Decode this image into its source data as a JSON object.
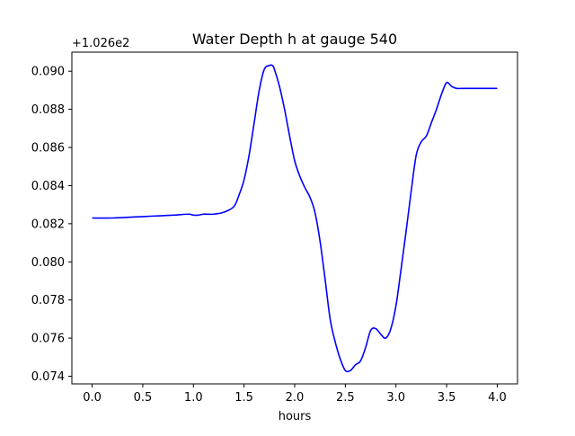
{
  "chart_data": {
    "type": "line",
    "title": "Water Depth h at gauge 540",
    "xlabel": "hours",
    "ylabel": "",
    "y_offset_label": "+1.026e2",
    "xlim": [
      -0.2,
      4.2
    ],
    "ylim": [
      0.0736,
      0.091
    ],
    "x_ticks": [
      0.0,
      0.5,
      1.0,
      1.5,
      2.0,
      2.5,
      3.0,
      3.5,
      4.0
    ],
    "x_tick_labels": [
      "0.0",
      "0.5",
      "1.0",
      "1.5",
      "2.0",
      "2.5",
      "3.0",
      "3.5",
      "4.0"
    ],
    "y_ticks": [
      0.074,
      0.076,
      0.078,
      0.08,
      0.082,
      0.084,
      0.086,
      0.088,
      0.09
    ],
    "y_tick_labels": [
      "0.074",
      "0.076",
      "0.078",
      "0.080",
      "0.082",
      "0.084",
      "0.086",
      "0.088",
      "0.090"
    ],
    "grid": false,
    "series": [
      {
        "color": "#0000ff",
        "x": [
          0.0,
          0.2,
          0.4,
          0.6,
          0.8,
          0.95,
          1.0,
          1.05,
          1.1,
          1.2,
          1.3,
          1.4,
          1.45,
          1.5,
          1.55,
          1.6,
          1.65,
          1.7,
          1.75,
          1.78,
          1.8,
          1.85,
          1.9,
          1.95,
          2.0,
          2.05,
          2.1,
          2.15,
          2.2,
          2.25,
          2.3,
          2.35,
          2.4,
          2.45,
          2.5,
          2.55,
          2.6,
          2.65,
          2.7,
          2.75,
          2.8,
          2.85,
          2.9,
          2.95,
          3.0,
          3.05,
          3.1,
          3.15,
          3.2,
          3.25,
          3.3,
          3.35,
          3.4,
          3.45,
          3.5,
          3.55,
          3.6,
          3.65,
          3.7,
          3.75,
          3.8,
          3.85,
          3.9,
          3.95,
          4.0
        ],
        "y": [
          0.0823,
          0.0823,
          0.08235,
          0.0824,
          0.08245,
          0.0825,
          0.08245,
          0.08245,
          0.0825,
          0.0825,
          0.0826,
          0.0829,
          0.0835,
          0.0843,
          0.0856,
          0.0873,
          0.089,
          0.0901,
          0.0903,
          0.0903,
          0.0901,
          0.0892,
          0.088,
          0.0866,
          0.0853,
          0.0845,
          0.0839,
          0.0834,
          0.0826,
          0.0811,
          0.0791,
          0.077,
          0.0758,
          0.0749,
          0.0743,
          0.0743,
          0.0746,
          0.0748,
          0.0755,
          0.0764,
          0.0765,
          0.0762,
          0.076,
          0.0765,
          0.0777,
          0.0796,
          0.0816,
          0.0837,
          0.0856,
          0.0863,
          0.0866,
          0.0873,
          0.088,
          0.0888,
          0.0894,
          0.0892,
          0.0891,
          0.0891,
          0.0891,
          0.0891,
          0.0891,
          0.0891,
          0.0891,
          0.0891,
          0.0891
        ]
      }
    ]
  }
}
